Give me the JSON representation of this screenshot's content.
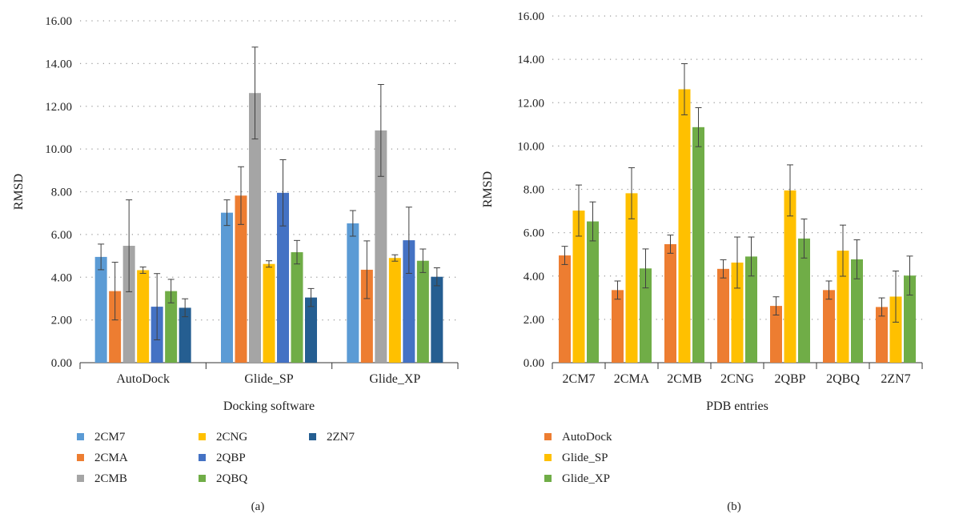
{
  "chart_data": [
    {
      "type": "bar",
      "panel_label": "(a)",
      "xlabel": "Docking software",
      "ylabel": "RMSD",
      "ylim": [
        0,
        16
      ],
      "yticks": [
        "0.00",
        "2.00",
        "4.00",
        "6.00",
        "8.00",
        "10.00",
        "12.00",
        "14.00",
        "16.00"
      ],
      "grid": "dotted horizontal",
      "legend_position": "bottom",
      "categories": [
        "AutoDock",
        "Glide_SP",
        "Glide_XP"
      ],
      "series": [
        {
          "name": "2CM7",
          "color": "#5b9bd5",
          "values": [
            4.95,
            7.02,
            6.52
          ],
          "errors": [
            0.6,
            0.6,
            0.6
          ]
        },
        {
          "name": "2CMA",
          "color": "#ed7d31",
          "values": [
            3.35,
            7.82,
            4.35
          ],
          "errors": [
            1.35,
            1.35,
            1.35
          ]
        },
        {
          "name": "2CMB",
          "color": "#a5a5a5",
          "values": [
            5.47,
            12.62,
            10.87
          ],
          "errors": [
            2.15,
            2.15,
            2.15
          ]
        },
        {
          "name": "2CNG",
          "color": "#ffc000",
          "values": [
            4.33,
            4.62,
            4.9
          ],
          "errors": [
            0.15,
            0.15,
            0.15
          ]
        },
        {
          "name": "2QBP",
          "color": "#4472c4",
          "values": [
            2.62,
            7.95,
            5.73
          ],
          "errors": [
            1.55,
            1.55,
            1.55
          ]
        },
        {
          "name": "2QBQ",
          "color": "#70ad47",
          "values": [
            3.35,
            5.17,
            4.77
          ],
          "errors": [
            0.55,
            0.55,
            0.55
          ]
        },
        {
          "name": "2ZN7",
          "color": "#255e91",
          "values": [
            2.57,
            3.05,
            4.02
          ],
          "errors": [
            0.42,
            0.42,
            0.42
          ]
        }
      ]
    },
    {
      "type": "bar",
      "panel_label": "(b)",
      "xlabel": "PDB entries",
      "ylabel": "RMSD",
      "ylim": [
        0,
        16
      ],
      "yticks": [
        "0.00",
        "2.00",
        "4.00",
        "6.00",
        "8.00",
        "10.00",
        "12.00",
        "14.00",
        "16.00"
      ],
      "grid": "dotted horizontal",
      "legend_position": "bottom",
      "categories": [
        "2CM7",
        "2CMA",
        "2CMB",
        "2CNG",
        "2QBP",
        "2QBQ",
        "2ZN7"
      ],
      "series": [
        {
          "name": "AutoDock",
          "color": "#ed7d31",
          "values": [
            4.95,
            3.35,
            5.47,
            4.33,
            2.62,
            3.35,
            2.57
          ],
          "errors": [
            0.42,
            0.42,
            0.42,
            0.42,
            0.42,
            0.42,
            0.42
          ]
        },
        {
          "name": "Glide_SP",
          "color": "#ffc000",
          "values": [
            7.02,
            7.82,
            12.62,
            4.62,
            7.95,
            5.17,
            3.05
          ],
          "errors": [
            1.18,
            1.18,
            1.18,
            1.18,
            1.18,
            1.18,
            1.18
          ]
        },
        {
          "name": "Glide_XP",
          "color": "#70ad47",
          "values": [
            6.52,
            4.35,
            10.87,
            4.9,
            5.73,
            4.77,
            4.02
          ],
          "errors": [
            0.9,
            0.9,
            0.9,
            0.9,
            0.9,
            0.9,
            0.9
          ]
        }
      ]
    }
  ]
}
